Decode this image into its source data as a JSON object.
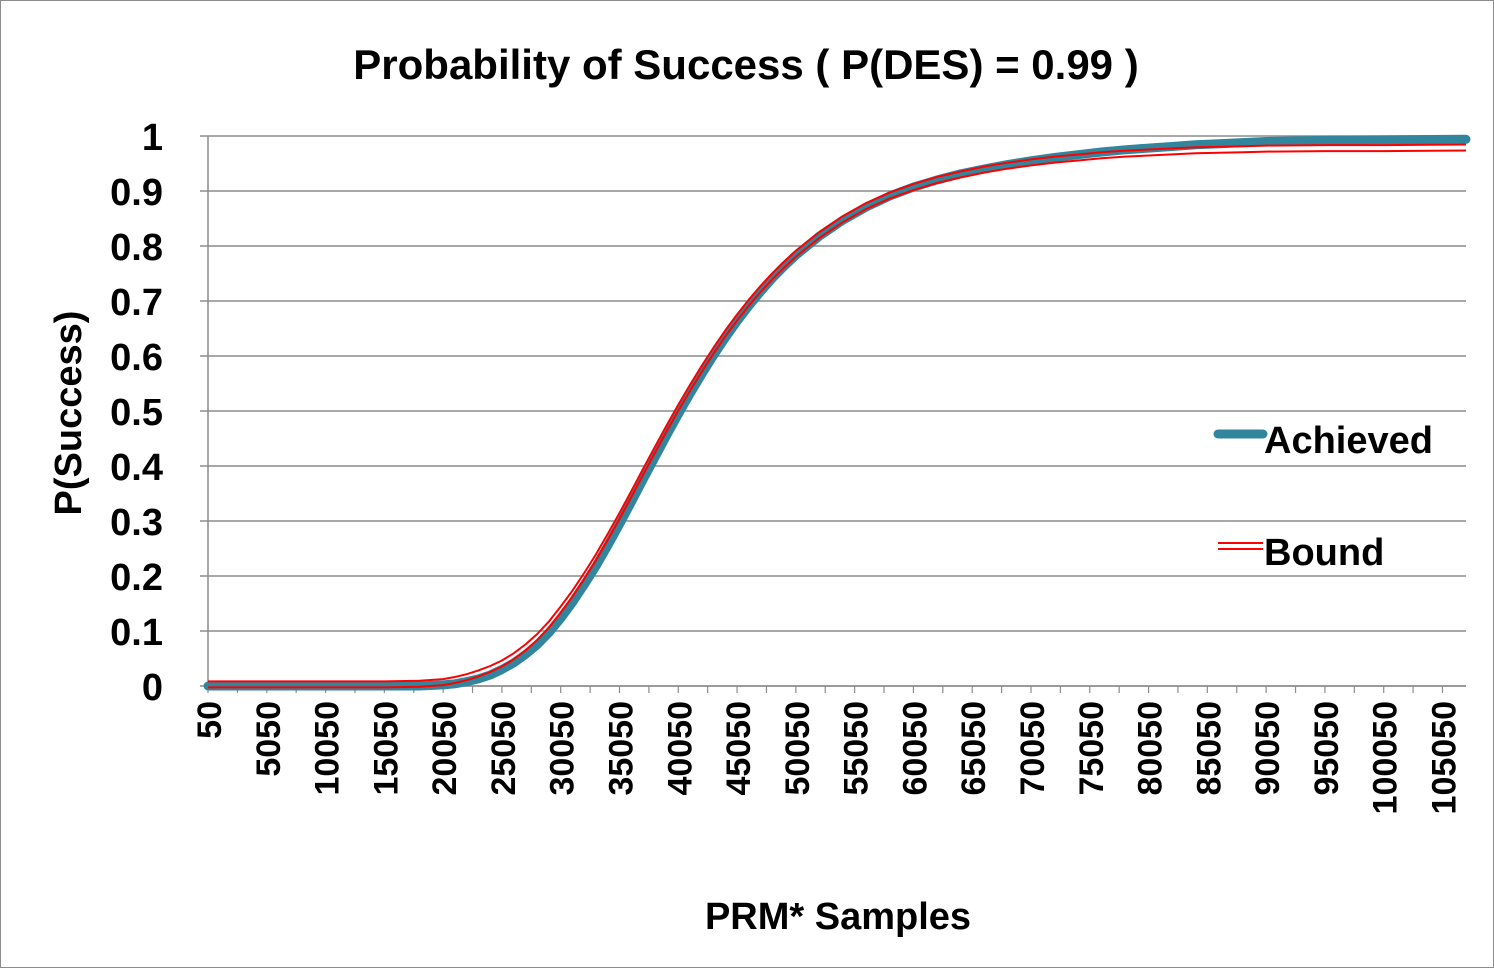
{
  "chart_data": {
    "type": "line",
    "title": "Probability of Success ( P(DES) = 0.99 )",
    "xlabel": "PRM* Samples",
    "ylabel": "P(Success)",
    "xlim": [
      50,
      107050
    ],
    "ylim": [
      0,
      1
    ],
    "x_ticks": [
      "50",
      "5050",
      "10050",
      "15050",
      "20050",
      "25050",
      "30050",
      "35050",
      "40050",
      "45050",
      "50050",
      "55050",
      "60050",
      "65050",
      "70050",
      "75050",
      "80050",
      "85050",
      "90050",
      "95050",
      "100050",
      "105050"
    ],
    "y_ticks": [
      "0",
      "0.1",
      "0.2",
      "0.3",
      "0.4",
      "0.5",
      "0.6",
      "0.7",
      "0.8",
      "0.9",
      "1"
    ],
    "grid": "horizontal",
    "legend_position": "right",
    "series": [
      {
        "name": "Achieved",
        "color": "#31859c",
        "x": [
          50,
          5050,
          10050,
          15050,
          18050,
          20050,
          21050,
          22050,
          23050,
          24050,
          25050,
          26050,
          27050,
          28050,
          29050,
          30050,
          31050,
          32050,
          33050,
          34050,
          35050,
          36050,
          37050,
          38050,
          39050,
          40050,
          41050,
          42050,
          43050,
          44050,
          45050,
          46050,
          47050,
          48050,
          49050,
          50050,
          52050,
          54050,
          56050,
          58050,
          60050,
          62050,
          64050,
          66050,
          68050,
          70050,
          72050,
          74050,
          76050,
          78050,
          80050,
          82050,
          84050,
          86050,
          88050,
          90050,
          95050,
          100050,
          107050
        ],
        "values": [
          0.0,
          0.0,
          0.0,
          0.0,
          0.0,
          0.002,
          0.004,
          0.008,
          0.013,
          0.02,
          0.03,
          0.042,
          0.057,
          0.075,
          0.097,
          0.123,
          0.152,
          0.184,
          0.218,
          0.255,
          0.294,
          0.334,
          0.375,
          0.415,
          0.455,
          0.494,
          0.531,
          0.567,
          0.601,
          0.633,
          0.663,
          0.691,
          0.717,
          0.741,
          0.763,
          0.783,
          0.818,
          0.847,
          0.871,
          0.891,
          0.907,
          0.92,
          0.931,
          0.94,
          0.948,
          0.955,
          0.961,
          0.966,
          0.971,
          0.975,
          0.978,
          0.981,
          0.984,
          0.986,
          0.988,
          0.99,
          0.992,
          0.993,
          0.994
        ]
      },
      {
        "name": "Bound",
        "color": "#ff0000",
        "x": [
          50,
          5050,
          10050,
          15050,
          18050,
          20050,
          21050,
          22050,
          23050,
          24050,
          25050,
          26050,
          27050,
          28050,
          29050,
          30050,
          31050,
          32050,
          33050,
          34050,
          35050,
          36050,
          37050,
          38050,
          39050,
          40050,
          41050,
          42050,
          43050,
          44050,
          45050,
          46050,
          47050,
          48050,
          49050,
          50050,
          52050,
          54050,
          56050,
          58050,
          60050,
          62050,
          64050,
          66050,
          68050,
          70050,
          72050,
          74050,
          76050,
          78050,
          80050,
          82050,
          84050,
          86050,
          88050,
          90050,
          95050,
          100050,
          107050
        ],
        "values": [
          0.003,
          0.003,
          0.003,
          0.003,
          0.004,
          0.007,
          0.011,
          0.016,
          0.023,
          0.031,
          0.041,
          0.054,
          0.07,
          0.089,
          0.112,
          0.139,
          0.168,
          0.2,
          0.234,
          0.271,
          0.309,
          0.349,
          0.389,
          0.429,
          0.468,
          0.506,
          0.542,
          0.577,
          0.61,
          0.641,
          0.67,
          0.697,
          0.722,
          0.745,
          0.766,
          0.786,
          0.82,
          0.849,
          0.873,
          0.892,
          0.907,
          0.92,
          0.93,
          0.939,
          0.946,
          0.952,
          0.957,
          0.961,
          0.965,
          0.968,
          0.97,
          0.972,
          0.974,
          0.975,
          0.976,
          0.977,
          0.978,
          0.978,
          0.979
        ]
      }
    ]
  }
}
